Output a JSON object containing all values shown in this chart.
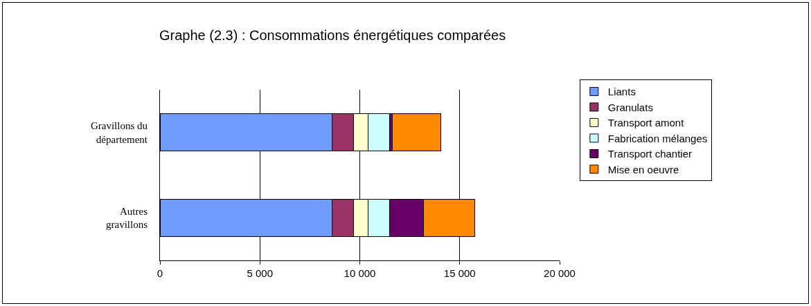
{
  "chart_data": {
    "type": "bar",
    "orientation": "horizontal",
    "stacked": true,
    "title": "Graphe (2.3) : Consommations énergétiques comparées",
    "categories": [
      "Gravillons du département",
      "Autres gravillons"
    ],
    "series": [
      {
        "name": "Liants",
        "color": "#6f9cff",
        "values": [
          8600,
          8600
        ]
      },
      {
        "name": "Granulats",
        "color": "#993366",
        "values": [
          1090,
          1090
        ]
      },
      {
        "name": "Transport amont",
        "color": "#ffffcc",
        "values": [
          720,
          720
        ]
      },
      {
        "name": "Fabrication mélanges",
        "color": "#ccffff",
        "values": [
          1070,
          1070
        ]
      },
      {
        "name": "Transport chantier",
        "color": "#660066",
        "values": [
          150,
          1700
        ]
      },
      {
        "name": "Mise en oeuvre",
        "color": "#ff8a00",
        "values": [
          2440,
          2570
        ]
      }
    ],
    "xlim": [
      0,
      20000
    ],
    "xticks": [
      {
        "value": 0,
        "label": "0"
      },
      {
        "value": 5000,
        "label": "5 000"
      },
      {
        "value": 10000,
        "label": "10 000"
      },
      {
        "value": 15000,
        "label": "15 000"
      },
      {
        "value": 20000,
        "label": "20 000"
      }
    ],
    "grid": "x",
    "legend": "right"
  }
}
